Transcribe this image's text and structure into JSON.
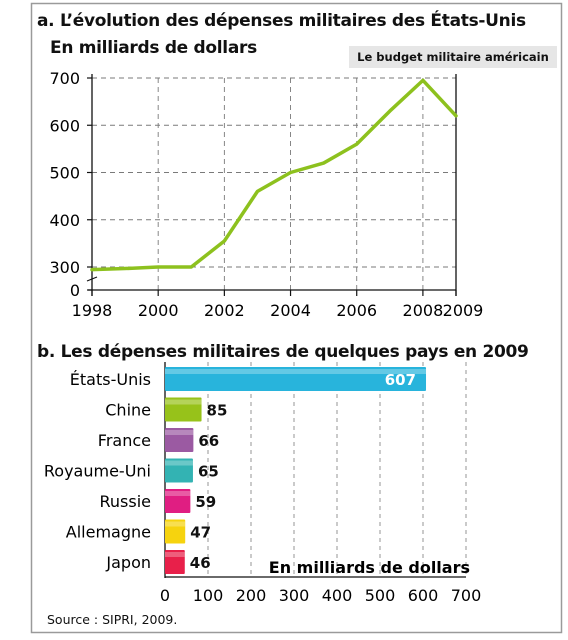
{
  "chart_a_title": "a. L’évolution des dépenses militaires des États-Unis",
  "chart_a_subtitle": "En milliards de dollars",
  "caption_tag": "Le budget militaire américain",
  "chart_b_title": "b. Les dépenses militaires de quelques pays en 2009",
  "chart_b_unit_label": "En milliards de dollars",
  "source": "Source : SIPRI, 2009.",
  "chart_data": [
    {
      "type": "line",
      "title": "L’évolution des dépenses militaires des États-Unis",
      "subtitle": "En milliards de dollars",
      "x": [
        1998,
        1999,
        2000,
        2001,
        2002,
        2003,
        2004,
        2005,
        2006,
        2007,
        2008,
        2009
      ],
      "y": [
        265,
        280,
        300,
        300,
        355,
        460,
        500,
        520,
        560,
        630,
        695,
        620
      ],
      "x_ticks": [
        1998,
        2000,
        2002,
        2004,
        2006,
        2008,
        2009
      ],
      "y_ticks": [
        0,
        300,
        400,
        500,
        600,
        700
      ],
      "ylim": [
        0,
        700
      ],
      "grid": "dashed",
      "line_color": "#8dc11e"
    },
    {
      "type": "bar",
      "orientation": "horizontal",
      "title": "Les dépenses militaires de quelques pays en 2009",
      "xlabel": "En milliards de dollars",
      "categories": [
        "États-Unis",
        "Chine",
        "France",
        "Royaume-Uni",
        "Russie",
        "Allemagne",
        "Japon"
      ],
      "values": [
        607,
        85,
        66,
        65,
        59,
        47,
        46
      ],
      "colors": [
        "#28b4dc",
        "#97c21a",
        "#9b5aa2",
        "#33b3b3",
        "#e01e82",
        "#f6d30e",
        "#e8204a"
      ],
      "x_ticks": [
        0,
        100,
        200,
        300,
        400,
        500,
        600,
        700
      ],
      "xlim": [
        0,
        700
      ],
      "grid": "dashed"
    }
  ]
}
